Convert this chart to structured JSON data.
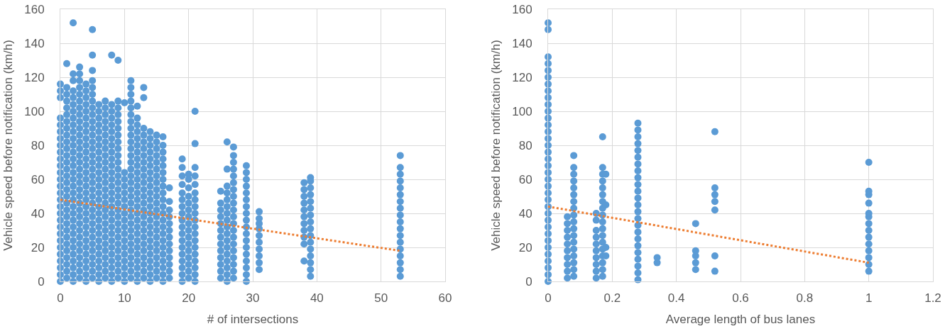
{
  "chart_data": [
    {
      "type": "scatter",
      "xlabel": "# of intersections",
      "ylabel": "Vehicle speed before notification (km/h)",
      "xlim": [
        0,
        60
      ],
      "xticks": [
        0,
        10,
        20,
        30,
        40,
        50,
        60
      ],
      "ylim": [
        0,
        160
      ],
      "yticks": [
        0,
        20,
        40,
        60,
        80,
        100,
        120,
        140,
        160
      ],
      "grid": true,
      "marker": "circle",
      "series": [
        {
          "color": "#5b9bd5",
          "x": [
            0,
            0,
            0,
            0,
            0,
            0,
            0,
            0,
            0,
            0,
            0,
            0,
            0,
            0,
            0,
            0,
            0,
            0,
            0,
            0,
            0,
            0,
            0,
            0,
            0,
            0,
            0,
            0
          ],
          "values": [
            0,
            4,
            8,
            12,
            16,
            20,
            24,
            28,
            32,
            36,
            40,
            44,
            48,
            52,
            56,
            60,
            64,
            68,
            72,
            76,
            80,
            84,
            88,
            92,
            96,
            108,
            112,
            116
          ]
        },
        {
          "color": "#5b9bd5",
          "x": [
            1,
            1,
            1,
            1,
            1,
            1,
            1,
            1,
            1,
            1,
            1,
            1,
            1,
            1,
            1,
            1,
            1,
            1,
            1,
            1,
            1,
            1,
            1,
            1,
            1,
            1,
            1,
            1,
            1,
            1
          ],
          "values": [
            2,
            6,
            10,
            14,
            18,
            22,
            26,
            30,
            34,
            38,
            42,
            46,
            50,
            54,
            58,
            62,
            66,
            70,
            74,
            78,
            82,
            86,
            90,
            94,
            98,
            102,
            106,
            110,
            114,
            128
          ]
        },
        {
          "color": "#5b9bd5",
          "x": [
            2,
            2,
            2,
            2,
            2,
            2,
            2,
            2,
            2,
            2,
            2,
            2,
            2,
            2,
            2,
            2,
            2,
            2,
            2,
            2,
            2,
            2,
            2,
            2,
            2,
            2,
            2,
            2,
            2,
            2,
            2,
            2
          ],
          "values": [
            0,
            4,
            8,
            12,
            16,
            20,
            24,
            28,
            32,
            36,
            40,
            44,
            48,
            52,
            56,
            60,
            64,
            68,
            72,
            76,
            80,
            84,
            88,
            92,
            96,
            100,
            104,
            108,
            112,
            118,
            122,
            152
          ]
        },
        {
          "color": "#5b9bd5",
          "x": [
            3,
            3,
            3,
            3,
            3,
            3,
            3,
            3,
            3,
            3,
            3,
            3,
            3,
            3,
            3,
            3,
            3,
            3,
            3,
            3,
            3,
            3,
            3,
            3,
            3,
            3,
            3,
            3,
            3,
            3,
            3,
            3
          ],
          "values": [
            2,
            6,
            10,
            14,
            18,
            22,
            26,
            30,
            34,
            38,
            42,
            46,
            50,
            54,
            58,
            62,
            66,
            70,
            74,
            78,
            82,
            86,
            90,
            94,
            98,
            102,
            106,
            110,
            114,
            118,
            122,
            126
          ]
        },
        {
          "color": "#5b9bd5",
          "x": [
            4,
            4,
            4,
            4,
            4,
            4,
            4,
            4,
            4,
            4,
            4,
            4,
            4,
            4,
            4,
            4,
            4,
            4,
            4,
            4,
            4,
            4,
            4,
            4,
            4,
            4,
            4,
            4,
            4,
            4
          ],
          "values": [
            0,
            4,
            8,
            12,
            16,
            20,
            24,
            28,
            32,
            36,
            40,
            44,
            48,
            52,
            56,
            60,
            64,
            68,
            72,
            76,
            80,
            84,
            88,
            92,
            96,
            100,
            104,
            108,
            112,
            116
          ]
        },
        {
          "color": "#5b9bd5",
          "x": [
            5,
            5,
            5,
            5,
            5,
            5,
            5,
            5,
            5,
            5,
            5,
            5,
            5,
            5,
            5,
            5,
            5,
            5,
            5,
            5,
            5,
            5,
            5,
            5,
            5,
            5,
            5,
            5,
            5,
            5,
            5,
            5,
            5
          ],
          "values": [
            2,
            6,
            10,
            14,
            18,
            22,
            26,
            30,
            34,
            38,
            42,
            46,
            50,
            54,
            58,
            62,
            66,
            70,
            74,
            78,
            82,
            86,
            90,
            94,
            98,
            102,
            106,
            110,
            114,
            118,
            124,
            133,
            148
          ]
        },
        {
          "color": "#5b9bd5",
          "x": [
            6,
            6,
            6,
            6,
            6,
            6,
            6,
            6,
            6,
            6,
            6,
            6,
            6,
            6,
            6,
            6,
            6,
            6,
            6,
            6,
            6,
            6,
            6,
            6,
            6,
            6,
            6
          ],
          "values": [
            0,
            4,
            8,
            12,
            16,
            20,
            24,
            28,
            32,
            36,
            40,
            44,
            48,
            52,
            56,
            60,
            64,
            68,
            72,
            76,
            80,
            84,
            88,
            92,
            96,
            100,
            104
          ]
        },
        {
          "color": "#5b9bd5",
          "x": [
            7,
            7,
            7,
            7,
            7,
            7,
            7,
            7,
            7,
            7,
            7,
            7,
            7,
            7,
            7,
            7,
            7,
            7,
            7,
            7,
            7,
            7,
            7,
            7,
            7,
            7,
            7
          ],
          "values": [
            2,
            6,
            10,
            14,
            18,
            22,
            26,
            30,
            34,
            38,
            42,
            46,
            50,
            54,
            58,
            62,
            66,
            70,
            74,
            78,
            82,
            86,
            90,
            94,
            98,
            102,
            106
          ]
        },
        {
          "color": "#5b9bd5",
          "x": [
            8,
            8,
            8,
            8,
            8,
            8,
            8,
            8,
            8,
            8,
            8,
            8,
            8,
            8,
            8,
            8,
            8,
            8,
            8,
            8,
            8,
            8,
            8,
            8,
            8,
            8,
            8,
            8
          ],
          "values": [
            0,
            4,
            8,
            12,
            16,
            20,
            24,
            28,
            32,
            36,
            40,
            44,
            48,
            52,
            56,
            60,
            64,
            68,
            72,
            76,
            80,
            84,
            88,
            92,
            96,
            100,
            104,
            133
          ]
        },
        {
          "color": "#5b9bd5",
          "x": [
            9,
            9,
            9,
            9,
            9,
            9,
            9,
            9,
            9,
            9,
            9,
            9,
            9,
            9,
            9,
            9,
            9,
            9,
            9,
            9,
            9,
            9,
            9,
            9,
            9,
            9,
            9,
            9
          ],
          "values": [
            2,
            6,
            10,
            14,
            18,
            22,
            26,
            30,
            34,
            38,
            42,
            46,
            50,
            54,
            58,
            62,
            66,
            70,
            74,
            78,
            82,
            86,
            90,
            94,
            98,
            102,
            106,
            130
          ]
        },
        {
          "color": "#5b9bd5",
          "x": [
            10,
            10,
            10,
            10,
            10,
            10,
            10,
            10,
            10,
            10,
            10,
            10,
            10,
            10,
            10,
            10,
            10,
            10
          ],
          "values": [
            0,
            4,
            8,
            12,
            16,
            20,
            24,
            28,
            32,
            36,
            40,
            44,
            48,
            52,
            56,
            60,
            64,
            105
          ]
        },
        {
          "color": "#5b9bd5",
          "x": [
            11,
            11,
            11,
            11,
            11,
            11,
            11,
            11,
            11,
            11,
            11,
            11,
            11,
            11,
            11,
            11,
            11,
            11,
            11,
            11,
            11,
            11,
            11,
            11,
            11,
            11,
            11,
            11,
            11,
            11
          ],
          "values": [
            2,
            6,
            10,
            14,
            18,
            22,
            26,
            30,
            34,
            38,
            42,
            46,
            50,
            54,
            58,
            62,
            66,
            70,
            74,
            78,
            82,
            86,
            90,
            94,
            98,
            102,
            106,
            110,
            114,
            118
          ]
        },
        {
          "color": "#5b9bd5",
          "x": [
            12,
            12,
            12,
            12,
            12,
            12,
            12,
            12,
            12,
            12,
            12,
            12,
            12,
            12,
            12,
            12,
            12,
            12,
            12,
            12,
            12,
            12,
            12,
            12,
            12,
            12
          ],
          "values": [
            0,
            4,
            8,
            12,
            16,
            20,
            24,
            28,
            32,
            36,
            40,
            44,
            48,
            52,
            56,
            60,
            64,
            68,
            72,
            76,
            80,
            84,
            88,
            92,
            96,
            103
          ]
        },
        {
          "color": "#5b9bd5",
          "x": [
            13,
            13,
            13,
            13,
            13,
            13,
            13,
            13,
            13,
            13,
            13,
            13,
            13,
            13,
            13,
            13,
            13,
            13,
            13,
            13,
            13,
            13,
            13,
            13,
            13
          ],
          "values": [
            2,
            6,
            10,
            14,
            18,
            22,
            26,
            30,
            34,
            38,
            42,
            46,
            50,
            54,
            58,
            62,
            66,
            70,
            74,
            78,
            82,
            86,
            90,
            108,
            114
          ]
        },
        {
          "color": "#5b9bd5",
          "x": [
            14,
            14,
            14,
            14,
            14,
            14,
            14,
            14,
            14,
            14,
            14,
            14,
            14,
            14,
            14,
            14,
            14,
            14,
            14,
            14,
            14,
            14,
            14
          ],
          "values": [
            0,
            4,
            8,
            12,
            16,
            20,
            24,
            28,
            32,
            36,
            40,
            44,
            48,
            52,
            56,
            60,
            64,
            68,
            72,
            76,
            80,
            84,
            88
          ]
        },
        {
          "color": "#5b9bd5",
          "x": [
            15,
            15,
            15,
            15,
            15,
            15,
            15,
            15,
            15,
            15,
            15,
            15,
            15,
            15,
            15,
            15,
            15,
            15,
            15,
            15,
            15,
            15
          ],
          "values": [
            2,
            6,
            10,
            14,
            18,
            22,
            26,
            30,
            34,
            38,
            42,
            46,
            50,
            54,
            58,
            62,
            66,
            70,
            74,
            78,
            82,
            86
          ]
        },
        {
          "color": "#5b9bd5",
          "x": [
            16,
            16,
            16,
            16,
            16,
            16,
            16,
            16,
            16,
            16,
            16,
            16,
            16,
            16,
            16,
            16,
            16,
            16,
            16,
            16,
            16,
            16
          ],
          "values": [
            0,
            4,
            8,
            12,
            16,
            20,
            24,
            28,
            32,
            36,
            40,
            44,
            48,
            52,
            56,
            60,
            64,
            68,
            72,
            76,
            80,
            85
          ]
        },
        {
          "color": "#5b9bd5",
          "x": [
            17,
            17,
            17,
            17,
            17,
            17,
            17,
            17,
            17,
            17,
            17,
            17,
            17
          ],
          "values": [
            2,
            6,
            10,
            14,
            18,
            22,
            26,
            30,
            34,
            38,
            42,
            47,
            55
          ]
        },
        {
          "color": "#5b9bd5",
          "x": [
            19,
            19,
            19,
            19,
            19,
            19,
            19,
            19,
            19,
            19,
            19,
            19,
            19,
            19,
            19,
            19,
            19,
            19
          ],
          "values": [
            0,
            4,
            8,
            12,
            16,
            20,
            24,
            28,
            32,
            36,
            40,
            44,
            48,
            52,
            57,
            62,
            67,
            72
          ]
        },
        {
          "color": "#5b9bd5",
          "x": [
            20,
            20,
            20,
            20,
            20,
            20,
            20,
            20,
            20,
            20,
            20,
            20,
            20,
            20,
            20,
            20
          ],
          "values": [
            2,
            6,
            10,
            14,
            18,
            22,
            26,
            30,
            34,
            38,
            42,
            46,
            50,
            55,
            60,
            63
          ]
        },
        {
          "color": "#5b9bd5",
          "x": [
            21,
            21,
            21,
            21,
            21,
            21,
            21,
            21,
            21,
            21,
            21,
            21,
            21,
            21,
            21,
            21,
            21,
            21,
            21
          ],
          "values": [
            0,
            4,
            8,
            12,
            16,
            20,
            24,
            28,
            32,
            36,
            40,
            44,
            48,
            52,
            57,
            62,
            67,
            81,
            100
          ]
        },
        {
          "color": "#5b9bd5",
          "x": [
            25,
            25,
            25,
            25,
            25,
            25,
            25,
            25,
            25,
            25,
            25,
            25,
            25
          ],
          "values": [
            2,
            6,
            10,
            14,
            18,
            22,
            26,
            30,
            34,
            38,
            42,
            46,
            53
          ]
        },
        {
          "color": "#5b9bd5",
          "x": [
            26,
            26,
            26,
            26,
            26,
            26,
            26,
            26,
            26,
            26,
            26,
            26,
            26,
            26,
            26,
            26,
            26
          ],
          "values": [
            0,
            4,
            8,
            12,
            16,
            20,
            24,
            28,
            32,
            36,
            40,
            44,
            48,
            52,
            56,
            66,
            82
          ]
        },
        {
          "color": "#5b9bd5",
          "x": [
            27,
            27,
            27,
            27,
            27,
            27,
            27,
            27,
            27,
            27,
            27,
            27,
            27,
            27,
            27,
            27,
            27,
            27,
            27,
            27
          ],
          "values": [
            2,
            6,
            10,
            14,
            18,
            22,
            26,
            30,
            34,
            38,
            42,
            46,
            50,
            54,
            58,
            62,
            66,
            70,
            74,
            79
          ]
        },
        {
          "color": "#5b9bd5",
          "x": [
            29,
            29,
            29,
            29,
            29,
            29,
            29,
            29,
            29,
            29,
            29,
            29,
            29,
            29,
            29,
            29,
            29,
            29
          ],
          "values": [
            0,
            4,
            8,
            12,
            16,
            20,
            24,
            28,
            32,
            36,
            40,
            44,
            48,
            52,
            56,
            60,
            64,
            68
          ]
        },
        {
          "color": "#5b9bd5",
          "x": [
            31,
            31,
            31,
            31,
            31,
            31,
            31,
            31,
            31,
            31
          ],
          "values": [
            7,
            11,
            15,
            19,
            23,
            27,
            31,
            34,
            37,
            41
          ]
        },
        {
          "color": "#5b9bd5",
          "x": [
            38,
            38,
            38,
            38,
            38,
            38,
            38,
            38,
            38,
            38,
            38
          ],
          "values": [
            12,
            22,
            26,
            30,
            34,
            38,
            42,
            46,
            50,
            54,
            58
          ]
        },
        {
          "color": "#5b9bd5",
          "x": [
            39,
            39,
            39,
            39,
            39,
            39,
            39,
            39,
            39,
            39,
            39,
            39,
            39,
            39,
            39,
            39
          ],
          "values": [
            3,
            7,
            11,
            15,
            19,
            23,
            27,
            31,
            35,
            39,
            43,
            47,
            51,
            55,
            59,
            61
          ]
        },
        {
          "color": "#5b9bd5",
          "x": [
            53,
            53,
            53,
            53,
            53,
            53,
            53,
            53,
            53,
            53,
            53,
            53,
            53,
            53,
            53,
            53,
            53,
            53
          ],
          "values": [
            3,
            7,
            11,
            15,
            19,
            23,
            27,
            31,
            35,
            39,
            43,
            47,
            51,
            55,
            59,
            63,
            67,
            74
          ]
        },
        {
          "type": "line",
          "marker": "none",
          "color": "#ed7d31",
          "line_style": "dotted",
          "x": [
            0,
            53
          ],
          "values": [
            48,
            18
          ]
        }
      ]
    },
    {
      "type": "scatter",
      "xlabel": "Average length of bus lanes",
      "ylabel": "Vehicle speed before notification (km/h)",
      "xlim": [
        0,
        1.2
      ],
      "xticks": [
        0,
        0.2,
        0.4,
        0.6,
        0.8,
        1,
        1.2
      ],
      "ylim": [
        0,
        160
      ],
      "yticks": [
        0,
        20,
        40,
        60,
        80,
        100,
        120,
        140,
        160
      ],
      "grid": true,
      "marker": "circle",
      "series": [
        {
          "color": "#5b9bd5",
          "x": [
            0,
            0,
            0,
            0,
            0,
            0,
            0,
            0,
            0,
            0,
            0,
            0,
            0,
            0,
            0,
            0,
            0,
            0,
            0,
            0,
            0,
            0,
            0,
            0,
            0,
            0,
            0,
            0,
            0,
            0,
            0,
            0,
            0,
            0,
            0,
            0
          ],
          "values": [
            0,
            4,
            8,
            12,
            16,
            20,
            24,
            28,
            32,
            36,
            40,
            44,
            48,
            52,
            56,
            60,
            64,
            68,
            72,
            76,
            80,
            84,
            88,
            92,
            96,
            100,
            104,
            108,
            112,
            116,
            120,
            124,
            128,
            132,
            148,
            152
          ]
        },
        {
          "color": "#5b9bd5",
          "x": [
            0.06,
            0.06,
            0.06,
            0.06,
            0.06,
            0.06,
            0.06,
            0.06,
            0.06,
            0.06
          ],
          "values": [
            2,
            6,
            10,
            14,
            18,
            22,
            26,
            30,
            34,
            38
          ]
        },
        {
          "color": "#5b9bd5",
          "x": [
            0.08,
            0.08,
            0.08,
            0.08,
            0.08,
            0.08,
            0.08,
            0.08,
            0.08,
            0.08,
            0.08,
            0.08,
            0.08,
            0.08,
            0.08,
            0.08,
            0.08,
            0.08
          ],
          "values": [
            3,
            7,
            11,
            15,
            19,
            23,
            27,
            31,
            35,
            39,
            43,
            47,
            51,
            55,
            59,
            63,
            67,
            74
          ]
        },
        {
          "color": "#5b9bd5",
          "x": [
            0.15,
            0.15,
            0.15,
            0.15,
            0.15,
            0.15,
            0.15,
            0.15,
            0.15,
            0.15
          ],
          "values": [
            2,
            6,
            10,
            14,
            18,
            22,
            26,
            30,
            36,
            40
          ]
        },
        {
          "color": "#5b9bd5",
          "x": [
            0.17,
            0.17,
            0.17,
            0.17,
            0.17,
            0.17,
            0.17,
            0.17,
            0.17,
            0.17,
            0.17,
            0.17,
            0.17,
            0.17,
            0.17,
            0.17,
            0.17,
            0.17
          ],
          "values": [
            3,
            7,
            11,
            15,
            19,
            23,
            27,
            31,
            35,
            39,
            43,
            47,
            51,
            55,
            59,
            63,
            67,
            85
          ]
        },
        {
          "color": "#5b9bd5",
          "x": [
            0.18,
            0.18,
            0.18,
            0.18
          ],
          "values": [
            15,
            20,
            45,
            63
          ]
        },
        {
          "color": "#5b9bd5",
          "x": [
            0.28,
            0.28,
            0.28,
            0.28,
            0.28,
            0.28,
            0.28,
            0.28,
            0.28,
            0.28,
            0.28,
            0.28,
            0.28,
            0.28,
            0.28,
            0.28,
            0.28,
            0.28,
            0.28,
            0.28,
            0.28,
            0.28,
            0.28,
            0.28
          ],
          "values": [
            1,
            5,
            9,
            13,
            17,
            21,
            25,
            29,
            33,
            37,
            41,
            45,
            49,
            53,
            57,
            61,
            65,
            69,
            73,
            77,
            81,
            85,
            89,
            93
          ]
        },
        {
          "color": "#5b9bd5",
          "x": [
            0.34,
            0.34
          ],
          "values": [
            11,
            14
          ]
        },
        {
          "color": "#5b9bd5",
          "x": [
            0.46,
            0.46,
            0.46,
            0.46,
            0.46
          ],
          "values": [
            7,
            11,
            15,
            18,
            34
          ]
        },
        {
          "color": "#5b9bd5",
          "x": [
            0.52,
            0.52,
            0.52,
            0.52,
            0.52,
            0.52,
            0.52
          ],
          "values": [
            6,
            15,
            42,
            47,
            51,
            55,
            88
          ]
        },
        {
          "color": "#5b9bd5",
          "x": [
            1,
            1,
            1,
            1,
            1,
            1,
            1,
            1,
            1,
            1,
            1,
            1,
            1,
            1
          ],
          "values": [
            6,
            10,
            14,
            18,
            22,
            26,
            30,
            34,
            38,
            40,
            46,
            51,
            53,
            70
          ]
        },
        {
          "type": "line",
          "marker": "none",
          "color": "#ed7d31",
          "line_style": "dotted",
          "x": [
            0,
            1
          ],
          "values": [
            44,
            11
          ]
        }
      ]
    }
  ]
}
